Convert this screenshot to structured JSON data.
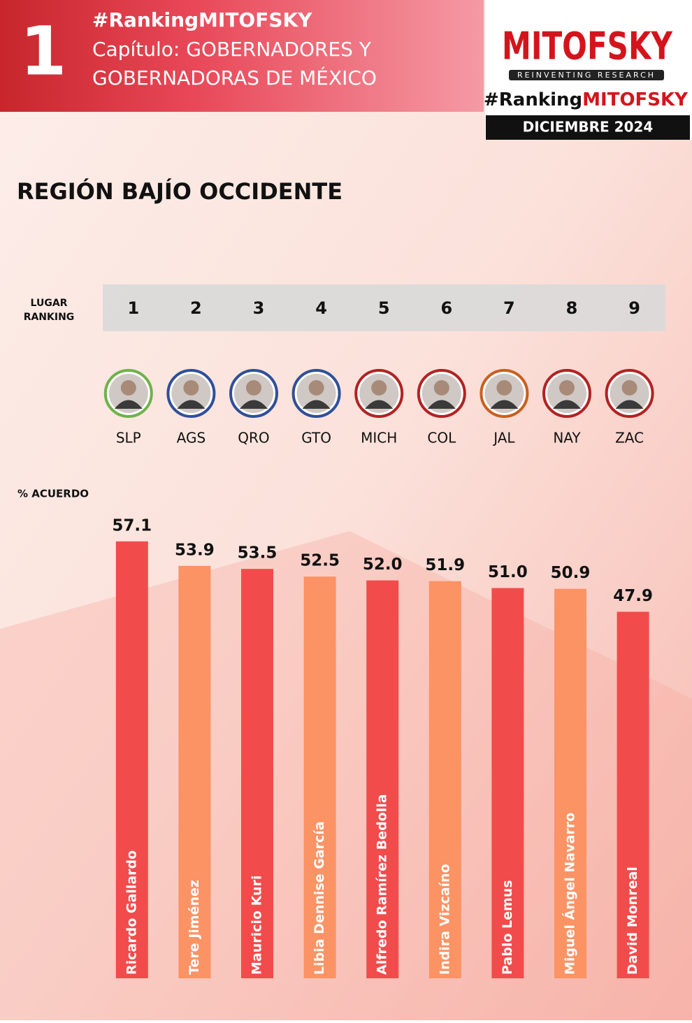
{
  "header": {
    "number": "1",
    "hashtag": "#RankingMITOFSKY",
    "chapter_line1": "Capítulo: GOBERNADORES Y",
    "chapter_line2": "GOBERNADORAS DE MÉXICO"
  },
  "logo": {
    "brand": "MITOFSKY",
    "tagline": "REINVENTING RESEARCH",
    "hashtag_prefix": "#Ranking",
    "hashtag_brand": "MITOFSKY",
    "date": "DICIEMBRE 2024"
  },
  "chart_data": {
    "type": "bar",
    "title": "REGIÓN BAJÍO OCCIDENTE",
    "rank_label_line1": "LUGAR",
    "rank_label_line2": "RANKING",
    "ranks": [
      1,
      2,
      3,
      4,
      5,
      6,
      7,
      8,
      9
    ],
    "states": [
      "SLP",
      "AGS",
      "QRO",
      "GTO",
      "MICH",
      "COL",
      "JAL",
      "NAY",
      "ZAC"
    ],
    "ring_colors": [
      "#6fb24a",
      "#2f4f9a",
      "#2f4f9a",
      "#2f4f9a",
      "#b22222",
      "#b22222",
      "#c8601f",
      "#b22222",
      "#b22222"
    ],
    "y_label": "% ACUERDO",
    "categories": [
      "Ricardo Gallardo",
      "Tere Jiménez",
      "Mauricio Kuri",
      "Libia Dennise García",
      "Alfredo Ramírez Bedolla",
      "Indira Vizcaíno",
      "Pablo Lemus",
      "Miguel Ángel Navarro",
      "David Monreal"
    ],
    "values": [
      57.1,
      53.9,
      53.5,
      52.5,
      52.0,
      51.9,
      51.0,
      50.9,
      47.9
    ],
    "value_labels": [
      "57.1",
      "53.9",
      "53.5",
      "52.5",
      "52.0",
      "51.9",
      "51.0",
      "50.9",
      "47.9"
    ],
    "colors": [
      "#f24b4b",
      "#fb9365",
      "#f24b4b",
      "#fb9365",
      "#f24b4b",
      "#fb9365",
      "#f24b4b",
      "#fb9365",
      "#f24b4b"
    ],
    "ylim": [
      0,
      60
    ]
  }
}
